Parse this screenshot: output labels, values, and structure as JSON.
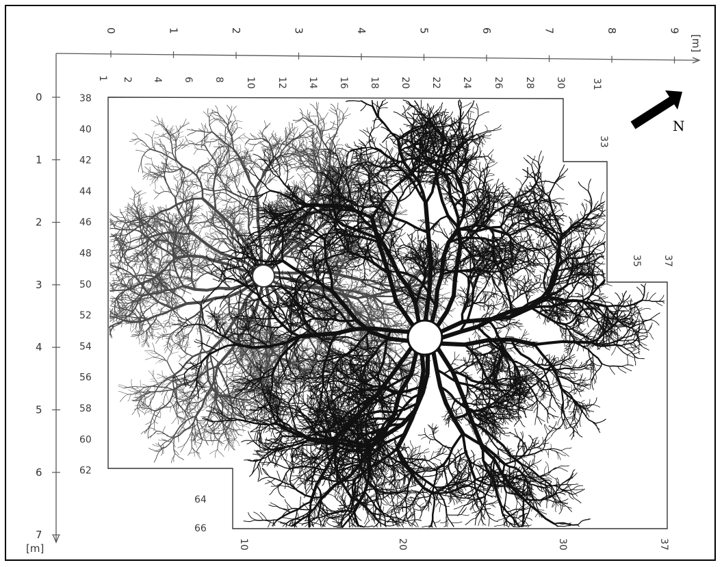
{
  "figure": {
    "x_axis": {
      "ticks": [
        "0",
        "1",
        "2",
        "3",
        "4",
        "5",
        "6",
        "7",
        "8",
        "9"
      ],
      "unit": "[m]"
    },
    "y_axis": {
      "ticks": [
        "0",
        "1",
        "2",
        "3",
        "4",
        "5",
        "6",
        "7"
      ],
      "unit": "[m]"
    },
    "top_grid_numbers": [
      "1",
      "2",
      "4",
      "6",
      "8",
      "10",
      "12",
      "14",
      "16",
      "18",
      "20",
      "22",
      "24",
      "26",
      "28",
      "30",
      "31"
    ],
    "left_grid_numbers": [
      "38",
      "40",
      "42",
      "44",
      "46",
      "48",
      "50",
      "52",
      "54",
      "56",
      "58",
      "60",
      "62"
    ],
    "right_notch_numbers": [
      "33",
      "35",
      "37"
    ],
    "lower_left_numbers": [
      "64",
      "66"
    ],
    "bottom_grid_numbers": [
      "10",
      "20",
      "30",
      "37"
    ],
    "north_label": "N",
    "colors": {
      "ink": "#111111",
      "light_ink": "#4a4a4a",
      "frame": "#000000"
    }
  }
}
